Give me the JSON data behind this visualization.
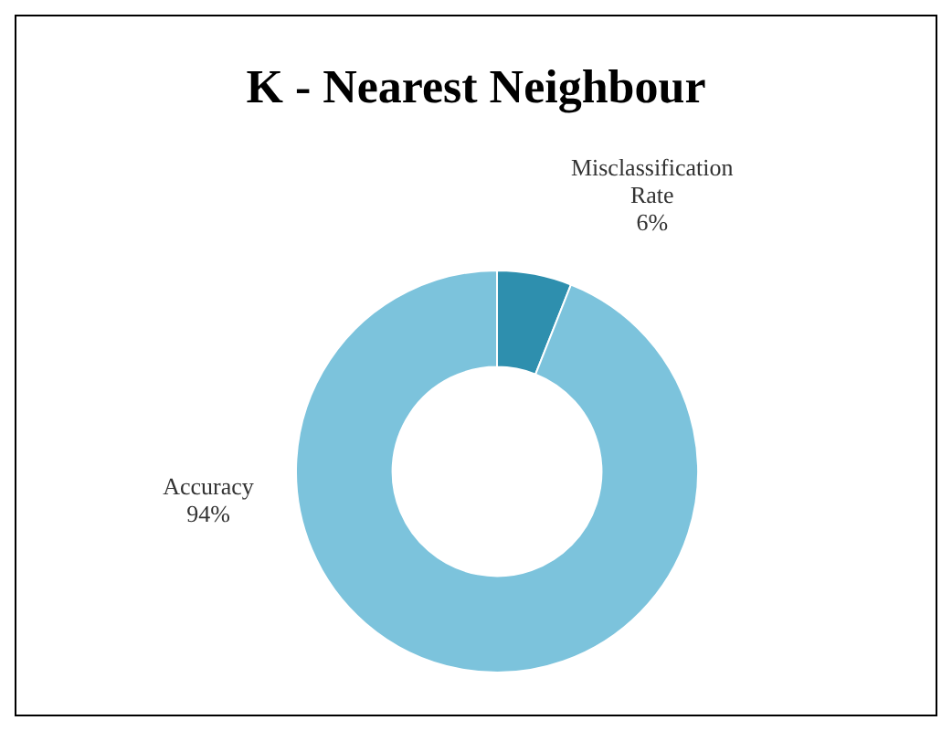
{
  "chart_data": {
    "type": "donut",
    "title": "K - Nearest Neighbour",
    "categories": [
      "Misclassification Rate",
      "Accuracy"
    ],
    "values": [
      6,
      94
    ],
    "colors": [
      "#2e8fae",
      "#7cc3dc"
    ],
    "value_labels": [
      "6%",
      "94%"
    ],
    "legend": false
  }
}
